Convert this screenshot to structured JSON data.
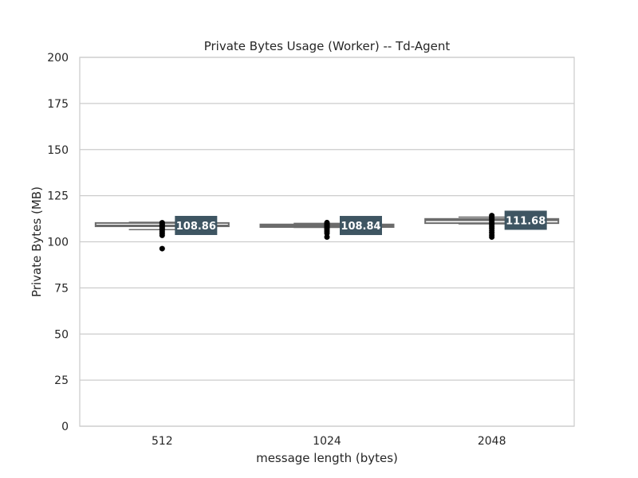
{
  "chart_data": {
    "type": "box",
    "title": "Private Bytes Usage (Worker) -- Td-Agent",
    "xlabel": "message length (bytes)",
    "ylabel": "Private Bytes (MB)",
    "ylim": [
      0,
      200
    ],
    "yticks": [
      0,
      25,
      50,
      75,
      100,
      125,
      150,
      175,
      200
    ],
    "grid": true,
    "categories": [
      "512",
      "1024",
      "2048"
    ],
    "boxes": [
      {
        "category": "512",
        "median": 108.86,
        "median_label": "108.86",
        "q1": 108.4,
        "q3": 110.2,
        "whisker_low": 106.6,
        "whisker_high": 110.6,
        "outliers": [
          96.3,
          103.5,
          104.5,
          105.5,
          106.4,
          107.0,
          107.6,
          108.2,
          108.8,
          109.3,
          109.8,
          110.3
        ]
      },
      {
        "category": "1024",
        "median": 108.84,
        "median_label": "108.84",
        "q1": 108.0,
        "q3": 109.4,
        "whisker_low": 107.8,
        "whisker_high": 110.0,
        "outliers": [
          102.6,
          104.6,
          105.6,
          106.5,
          107.3,
          107.9,
          108.4,
          108.9,
          109.4,
          109.9,
          110.4
        ]
      },
      {
        "category": "2048",
        "median": 111.68,
        "median_label": "111.68",
        "q1": 110.1,
        "q3": 112.4,
        "whisker_low": 109.7,
        "whisker_high": 113.4,
        "outliers": [
          102.6,
          103.6,
          104.9,
          106.1,
          107.3,
          108.3,
          109.2,
          110.0,
          110.8,
          111.5,
          112.2,
          112.9,
          113.6,
          114.2
        ]
      }
    ],
    "colors": {
      "box_edge": "#6b6b6b",
      "outlier": "#000000",
      "label_bg": "#3e5562",
      "label_text": "#ffffff",
      "grid": "#cccccc",
      "frame": "#cccccc"
    }
  }
}
